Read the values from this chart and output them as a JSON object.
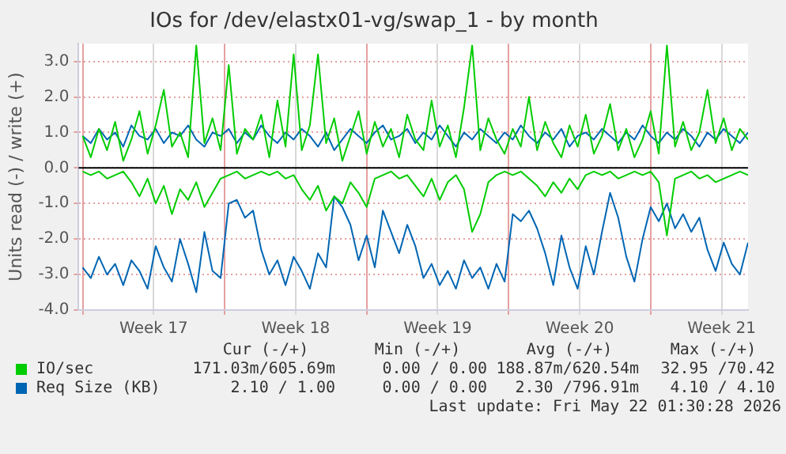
{
  "chart_data": {
    "type": "line",
    "title": "IOs for /dev/elastx01-vg/swap_1 - by month",
    "ylabel": "Units read (-) / write (+)",
    "x": [
      "2026-04-20T00:00",
      "2026-04-20T09:36",
      "2026-04-20T19:12",
      "2026-04-21T04:48",
      "2026-04-21T14:24",
      "2026-04-22T00:00",
      "2026-04-22T09:36",
      "2026-04-22T19:12",
      "2026-04-23T04:48",
      "2026-04-23T14:24",
      "2026-04-24T00:00",
      "2026-04-24T09:36",
      "2026-04-24T19:12",
      "2026-04-25T04:48",
      "2026-04-25T14:24",
      "2026-04-26T00:00",
      "2026-04-26T09:36",
      "2026-04-26T19:12",
      "2026-04-27T04:48",
      "2026-04-27T14:24",
      "2026-04-28T00:00",
      "2026-04-28T09:36",
      "2026-04-28T19:12",
      "2026-04-29T04:48",
      "2026-04-29T14:24",
      "2026-04-30T00:00",
      "2026-04-30T09:36",
      "2026-04-30T19:12",
      "2026-05-01T04:48",
      "2026-05-01T14:24",
      "2026-05-02T00:00",
      "2026-05-02T09:36",
      "2026-05-02T19:12",
      "2026-05-03T04:48",
      "2026-05-03T14:24",
      "2026-05-04T00:00",
      "2026-05-04T09:36",
      "2026-05-04T19:12",
      "2026-05-05T04:48",
      "2026-05-05T14:24",
      "2026-05-06T00:00",
      "2026-05-06T09:36",
      "2026-05-06T19:12",
      "2026-05-07T04:48",
      "2026-05-07T14:24",
      "2026-05-08T00:00",
      "2026-05-08T09:36",
      "2026-05-08T19:12",
      "2026-05-09T04:48",
      "2026-05-09T14:24",
      "2026-05-10T00:00",
      "2026-05-10T09:36",
      "2026-05-10T19:12",
      "2026-05-11T04:48",
      "2026-05-11T14:24",
      "2026-05-12T00:00",
      "2026-05-12T09:36",
      "2026-05-12T19:12",
      "2026-05-13T04:48",
      "2026-05-13T14:24",
      "2026-05-14T00:00",
      "2026-05-14T09:36",
      "2026-05-14T19:12",
      "2026-05-15T04:48",
      "2026-05-15T14:24",
      "2026-05-16T00:00",
      "2026-05-16T09:36",
      "2026-05-16T19:12",
      "2026-05-17T04:48",
      "2026-05-17T14:24",
      "2026-05-18T00:00",
      "2026-05-18T09:36",
      "2026-05-18T19:12",
      "2026-05-19T04:48",
      "2026-05-19T14:24",
      "2026-05-20T00:00",
      "2026-05-20T09:36",
      "2026-05-20T19:12",
      "2026-05-21T04:48",
      "2026-05-21T14:24",
      "2026-05-22T00:00",
      "2026-05-22T09:36",
      "2026-05-22T19:12"
    ],
    "series": [
      {
        "name": "IO/sec",
        "color": "#00cc00",
        "values": [
          0.9,
          0.3,
          1.1,
          0.5,
          1.3,
          0.2,
          0.8,
          1.6,
          0.4,
          1.2,
          2.2,
          0.6,
          1.0,
          0.3,
          3.45,
          0.7,
          1.4,
          0.5,
          2.9,
          0.4,
          1.1,
          0.8,
          1.5,
          0.3,
          1.9,
          0.6,
          3.2,
          0.5,
          1.2,
          3.2,
          0.7,
          1.4,
          0.2,
          0.9,
          1.6,
          0.4,
          1.3,
          0.6,
          1.1,
          0.3,
          1.5,
          0.8,
          0.5,
          1.9,
          0.6,
          1.2,
          0.3,
          1.7,
          3.45,
          0.5,
          1.4,
          0.8,
          0.4,
          1.1,
          0.6,
          2.0,
          0.5,
          1.3,
          0.7,
          0.3,
          1.2,
          0.6,
          1.5,
          0.4,
          0.9,
          1.8,
          0.5,
          1.1,
          0.3,
          0.8,
          1.6,
          0.4,
          3.45,
          0.6,
          1.3,
          0.5,
          1.0,
          2.2,
          0.7,
          1.4,
          0.5,
          1.1,
          0.8
        ]
      },
      {
        "color": "#00cc00",
        "values": [
          -0.1,
          -0.2,
          -0.1,
          -0.3,
          -0.2,
          -0.1,
          -0.4,
          -0.8,
          -0.3,
          -1.0,
          -0.5,
          -1.3,
          -0.6,
          -0.9,
          -0.4,
          -1.1,
          -0.7,
          -0.3,
          -0.2,
          -0.1,
          -0.3,
          -0.2,
          -0.1,
          -0.2,
          -0.1,
          -0.3,
          -0.2,
          -0.6,
          -0.9,
          -0.5,
          -1.2,
          -0.8,
          -1.0,
          -0.4,
          -0.7,
          -1.1,
          -0.3,
          -0.2,
          -0.1,
          -0.3,
          -0.2,
          -0.5,
          -0.8,
          -0.3,
          -0.9,
          -0.4,
          -0.2,
          -0.6,
          -1.8,
          -1.3,
          -0.4,
          -0.2,
          -0.1,
          -0.2,
          -0.1,
          -0.3,
          -0.5,
          -0.8,
          -0.4,
          -0.7,
          -0.3,
          -0.6,
          -0.2,
          -0.1,
          -0.2,
          -0.1,
          -0.3,
          -0.2,
          -0.1,
          -0.2,
          -0.1,
          -0.4,
          -1.9,
          -0.3,
          -0.2,
          -0.1,
          -0.3,
          -0.2,
          -0.4,
          -0.3,
          -0.2,
          -0.1,
          -0.2
        ]
      },
      {
        "name": "Req Size (KB)",
        "color": "#0066b3",
        "values": [
          0.9,
          0.7,
          1.1,
          0.8,
          1.0,
          0.6,
          1.2,
          0.9,
          0.8,
          1.1,
          0.7,
          1.0,
          0.9,
          1.2,
          0.8,
          0.6,
          1.0,
          0.9,
          1.1,
          0.7,
          1.0,
          0.8,
          1.2,
          0.9,
          0.7,
          1.0,
          0.8,
          1.1,
          0.9,
          0.6,
          1.0,
          0.5,
          0.8,
          1.1,
          0.9,
          0.7,
          1.0,
          1.2,
          0.8,
          0.9,
          1.1,
          0.7,
          1.0,
          0.8,
          1.2,
          0.9,
          0.6,
          1.0,
          0.8,
          1.1,
          0.9,
          0.7,
          1.0,
          0.8,
          1.2,
          0.9,
          0.7,
          1.0,
          0.8,
          1.1,
          0.6,
          0.9,
          1.0,
          0.8,
          1.1,
          0.9,
          0.7,
          1.0,
          0.8,
          1.2,
          0.9,
          0.7,
          1.0,
          0.8,
          1.1,
          0.9,
          0.6,
          1.0,
          0.8,
          1.1,
          0.9,
          0.7,
          1.0
        ]
      },
      {
        "color": "#0066b3",
        "values": [
          -2.8,
          -3.1,
          -2.5,
          -3.0,
          -2.7,
          -3.3,
          -2.6,
          -2.9,
          -3.4,
          -2.2,
          -2.8,
          -3.2,
          -2.0,
          -2.7,
          -3.5,
          -1.8,
          -2.9,
          -3.1,
          -1.0,
          -0.9,
          -1.4,
          -1.2,
          -2.3,
          -3.0,
          -2.6,
          -3.3,
          -2.5,
          -2.9,
          -3.4,
          -2.4,
          -2.8,
          -0.8,
          -1.1,
          -1.6,
          -2.6,
          -1.9,
          -2.8,
          -1.2,
          -1.8,
          -2.4,
          -1.6,
          -2.2,
          -3.1,
          -2.7,
          -3.3,
          -2.9,
          -3.4,
          -2.6,
          -3.1,
          -2.8,
          -3.4,
          -2.7,
          -3.2,
          -1.3,
          -1.5,
          -1.2,
          -1.7,
          -2.4,
          -3.3,
          -1.9,
          -2.8,
          -3.4,
          -2.2,
          -3.0,
          -1.8,
          -0.7,
          -1.4,
          -2.5,
          -3.2,
          -2.0,
          -1.1,
          -1.5,
          -1.0,
          -1.7,
          -1.3,
          -1.8,
          -1.4,
          -2.3,
          -2.9,
          -2.1,
          -2.7,
          -3.0,
          -2.1
        ]
      }
    ],
    "xlim": [
      "2026-04-19T19:12",
      "2026-05-22T19:12"
    ],
    "xticks": [
      {
        "value": "2026-04-20",
        "label": null
      },
      {
        "value": "2026-04-23T12:00",
        "label": "Week 17"
      },
      {
        "value": "2026-04-27",
        "label": null
      },
      {
        "value": "2026-04-30T12:00",
        "label": "Week 18"
      },
      {
        "value": "2026-05-04",
        "label": null
      },
      {
        "value": "2026-05-07T12:00",
        "label": "Week 19"
      },
      {
        "value": "2026-05-11",
        "label": null
      },
      {
        "value": "2026-05-14T12:00",
        "label": "Week 20"
      },
      {
        "value": "2026-05-18",
        "label": null
      },
      {
        "value": "2026-05-21T12:00",
        "label": "Week 21"
      }
    ],
    "ylim": [
      -4,
      3.5
    ],
    "yticks": [
      {
        "value": -4,
        "label": "-4.0"
      },
      {
        "value": -3,
        "label": "-3.0"
      },
      {
        "value": -2,
        "label": "-2.0"
      },
      {
        "value": -1,
        "label": "-1.0"
      },
      {
        "value": 0,
        "label": "0.0"
      },
      {
        "value": 1,
        "label": "1.0"
      },
      {
        "value": 2,
        "label": "2.0"
      },
      {
        "value": 3,
        "label": "3.0"
      }
    ],
    "grid": true,
    "legend": "bottom",
    "ref_lines": [
      {
        "axis": "y",
        "value": 0,
        "color": "#000000"
      }
    ],
    "annotations": [
      "Cur (-/+)",
      "Min (-/+)",
      "Avg (-/+)",
      "Max (-/+)",
      "171.03m/605.69m",
      "0.00 / 0.00",
      "188.87m/620.54m",
      "32.95 /70.42",
      "2.10 / 1.00",
      "0.00 / 0.00",
      "2.30 /796.91m",
      "4.10 / 4.10",
      "Last update: Fri May 22 01:30:28 2026"
    ]
  }
}
